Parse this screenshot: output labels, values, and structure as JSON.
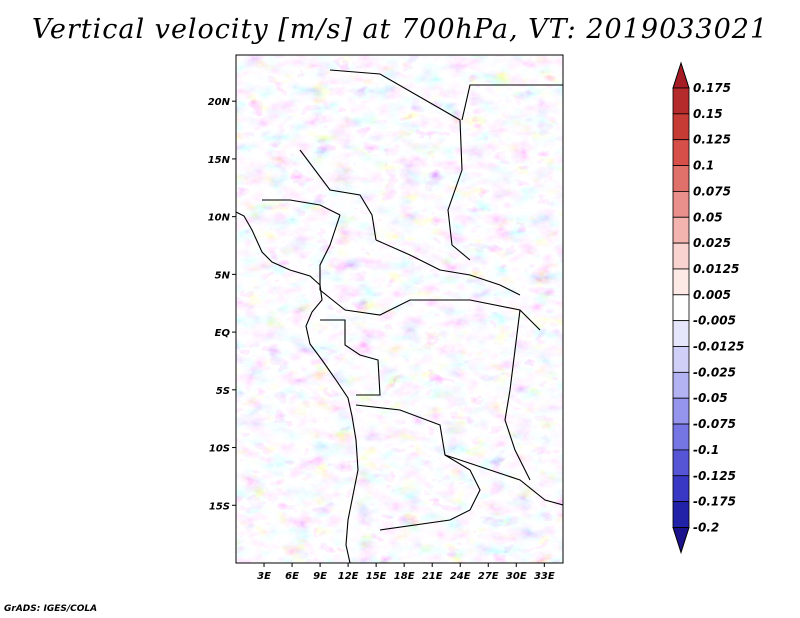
{
  "title": "Vertical velocity [m/s] at 700hPa, VT: 2019033021",
  "credit": "GrADS: IGES/COLA",
  "map": {
    "lon_range": [
      0,
      35
    ],
    "lat_range": [
      -20,
      24
    ],
    "lon_ticks": [
      "3E",
      "6E",
      "9E",
      "12E",
      "15E",
      "18E",
      "21E",
      "24E",
      "27E",
      "30E",
      "33E"
    ],
    "lat_ticks": [
      "20N",
      "15N",
      "10N",
      "5N",
      "EQ",
      "5S",
      "10S",
      "15S"
    ]
  },
  "colorbar": {
    "labels": [
      "0.175",
      "0.15",
      "0.125",
      "0.1",
      "0.075",
      "0.05",
      "0.025",
      "0.0125",
      "0.005",
      "-0.005",
      "-0.0125",
      "-0.025",
      "-0.05",
      "-0.075",
      "-0.1",
      "-0.125",
      "-0.175",
      "-0.2"
    ],
    "colors": [
      "#a51c25",
      "#b52a2a",
      "#c73b35",
      "#d65049",
      "#e0706a",
      "#e98f8c",
      "#f3b4b0",
      "#f8d3d0",
      "#fde9e6",
      "#ffffff",
      "#e5e5fb",
      "#cfcff7",
      "#b3b3f3",
      "#9595ed",
      "#7575e3",
      "#5555d6",
      "#3838c5",
      "#2222a8",
      "#1c138c"
    ]
  }
}
